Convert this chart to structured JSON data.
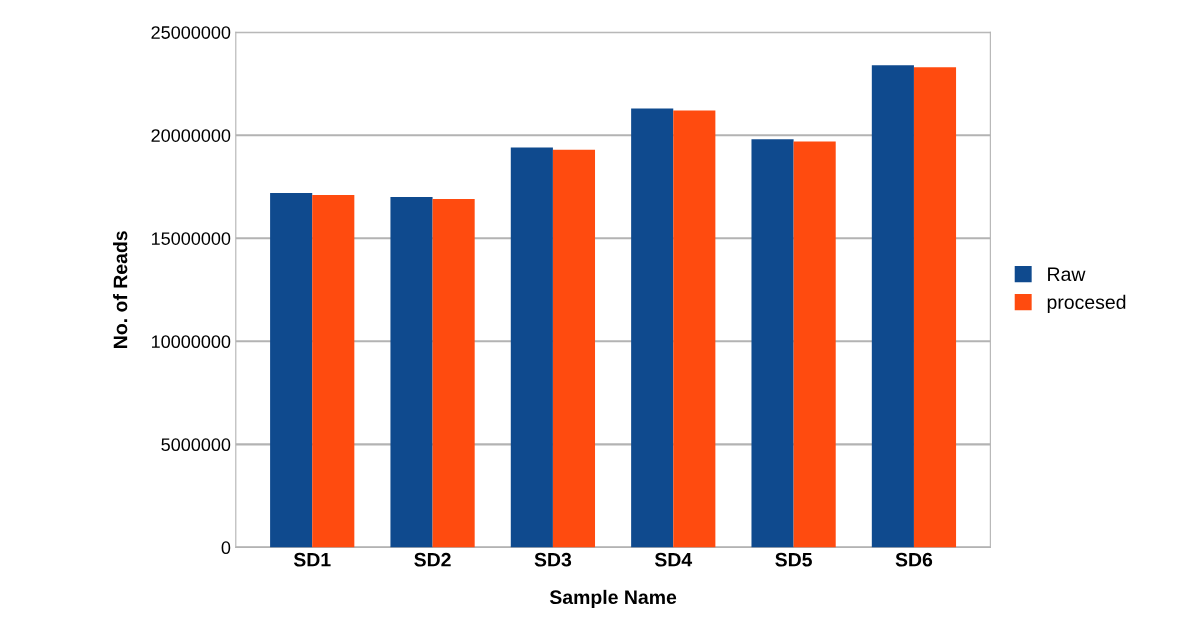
{
  "chart_data": {
    "type": "bar",
    "xlabel": "Sample Name",
    "ylabel": "No. of Reads",
    "categories": [
      "SD1",
      "SD2",
      "SD3",
      "SD4",
      "SD5",
      "SD6"
    ],
    "series": [
      {
        "name": "Raw",
        "color": "#0f4a8e",
        "values": [
          17200000,
          17000000,
          19400000,
          21300000,
          19800000,
          23400000
        ]
      },
      {
        "name": "procesed",
        "color": "#ff4b0f",
        "values": [
          17100000,
          16900000,
          19300000,
          21200000,
          19700000,
          23300000
        ]
      }
    ],
    "ylim": [
      0,
      25000000
    ],
    "yticks": [
      0,
      5000000,
      10000000,
      15000000,
      20000000,
      25000000
    ],
    "grid": "y",
    "legend": "right"
  }
}
